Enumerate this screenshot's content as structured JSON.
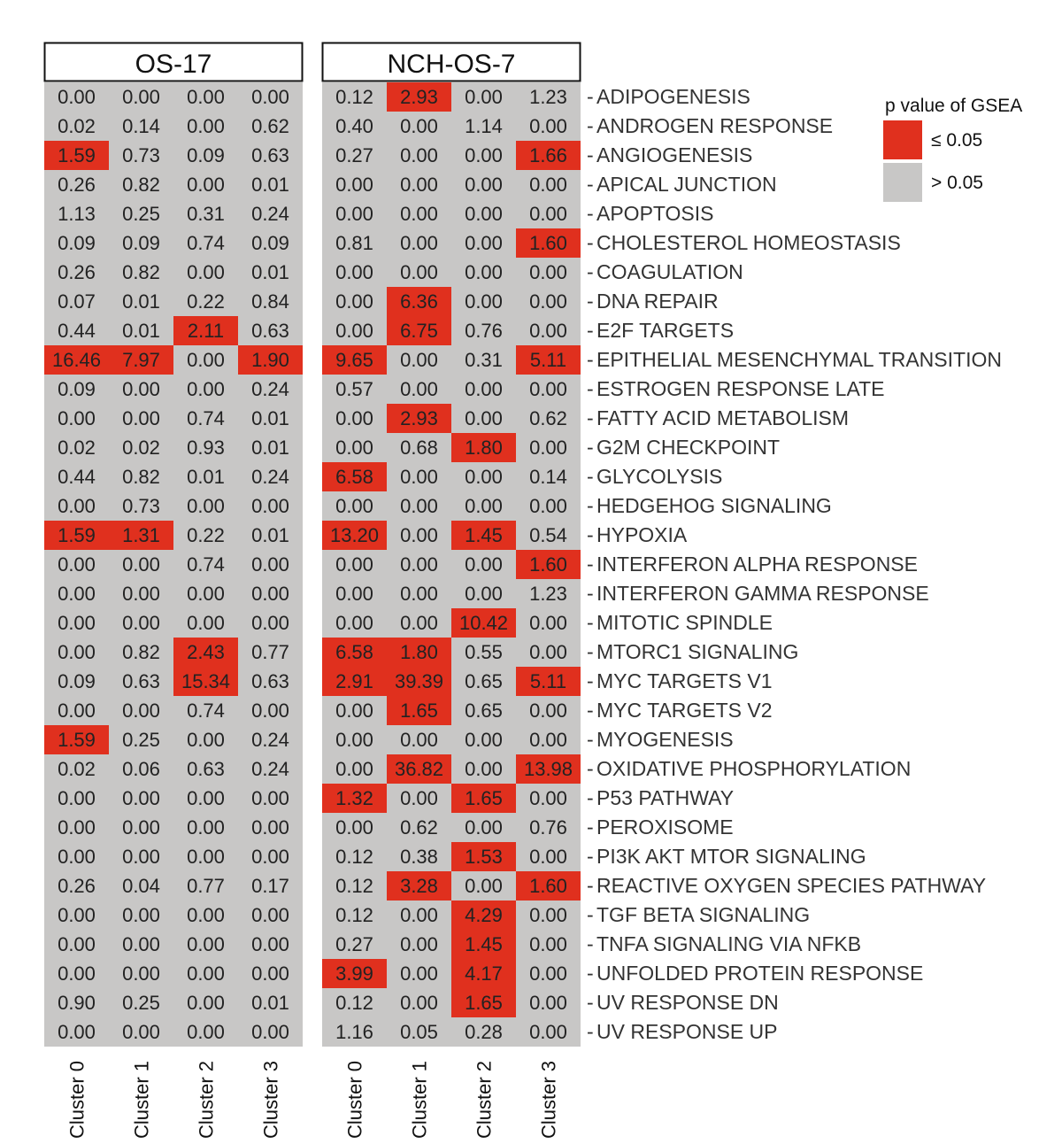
{
  "chart_data": {
    "type": "heatmap",
    "rows": [
      "ADIPOGENESIS",
      "ANDROGEN RESPONSE",
      "ANGIOGENESIS",
      "APICAL JUNCTION",
      "APOPTOSIS",
      "CHOLESTEROL HOMEOSTASIS",
      "COAGULATION",
      "DNA REPAIR",
      "E2F TARGETS",
      "EPITHELIAL MESENCHYMAL TRANSITION",
      "ESTROGEN RESPONSE LATE",
      "FATTY ACID METABOLISM",
      "G2M CHECKPOINT",
      "GLYCOLYSIS",
      "HEDGEHOG SIGNALING",
      "HYPOXIA",
      "INTERFERON ALPHA RESPONSE",
      "INTERFERON GAMMA RESPONSE",
      "MITOTIC SPINDLE",
      "MTORC1 SIGNALING",
      "MYC TARGETS V1",
      "MYC TARGETS V2",
      "MYOGENESIS",
      "OXIDATIVE PHOSPHORYLATION",
      "P53 PATHWAY",
      "PEROXISOME",
      "PI3K AKT MTOR SIGNALING",
      "REACTIVE OXYGEN SPECIES PATHWAY",
      "TGF BETA SIGNALING",
      "TNFA SIGNALING VIA NFKB",
      "UNFOLDED PROTEIN RESPONSE",
      "UV RESPONSE DN",
      "UV RESPONSE UP"
    ],
    "panels": [
      {
        "title": "OS-17",
        "columns": [
          "Cluster 0",
          "Cluster 1",
          "Cluster 2",
          "Cluster 3"
        ],
        "values": [
          [
            "0.00",
            "0.00",
            "0.00",
            "0.00"
          ],
          [
            "0.02",
            "0.14",
            "0.00",
            "0.62"
          ],
          [
            "1.59",
            "0.73",
            "0.09",
            "0.63"
          ],
          [
            "0.26",
            "0.82",
            "0.00",
            "0.01"
          ],
          [
            "1.13",
            "0.25",
            "0.31",
            "0.24"
          ],
          [
            "0.09",
            "0.09",
            "0.74",
            "0.09"
          ],
          [
            "0.26",
            "0.82",
            "0.00",
            "0.01"
          ],
          [
            "0.07",
            "0.01",
            "0.22",
            "0.84"
          ],
          [
            "0.44",
            "0.01",
            "2.11",
            "0.63"
          ],
          [
            "16.46",
            "7.97",
            "0.00",
            "1.90"
          ],
          [
            "0.09",
            "0.00",
            "0.00",
            "0.24"
          ],
          [
            "0.00",
            "0.00",
            "0.74",
            "0.01"
          ],
          [
            "0.02",
            "0.02",
            "0.93",
            "0.01"
          ],
          [
            "0.44",
            "0.82",
            "0.01",
            "0.24"
          ],
          [
            "0.00",
            "0.73",
            "0.00",
            "0.00"
          ],
          [
            "1.59",
            "1.31",
            "0.22",
            "0.01"
          ],
          [
            "0.00",
            "0.00",
            "0.74",
            "0.00"
          ],
          [
            "0.00",
            "0.00",
            "0.00",
            "0.00"
          ],
          [
            "0.00",
            "0.00",
            "0.00",
            "0.00"
          ],
          [
            "0.00",
            "0.82",
            "2.43",
            "0.77"
          ],
          [
            "0.09",
            "0.63",
            "15.34",
            "0.63"
          ],
          [
            "0.00",
            "0.00",
            "0.74",
            "0.00"
          ],
          [
            "1.59",
            "0.25",
            "0.00",
            "0.24"
          ],
          [
            "0.02",
            "0.06",
            "0.63",
            "0.24"
          ],
          [
            "0.00",
            "0.00",
            "0.00",
            "0.00"
          ],
          [
            "0.00",
            "0.00",
            "0.00",
            "0.00"
          ],
          [
            "0.00",
            "0.00",
            "0.00",
            "0.00"
          ],
          [
            "0.26",
            "0.04",
            "0.77",
            "0.17"
          ],
          [
            "0.00",
            "0.00",
            "0.00",
            "0.00"
          ],
          [
            "0.00",
            "0.00",
            "0.00",
            "0.00"
          ],
          [
            "0.00",
            "0.00",
            "0.00",
            "0.00"
          ],
          [
            "0.90",
            "0.25",
            "0.00",
            "0.01"
          ],
          [
            "0.00",
            "0.00",
            "0.00",
            "0.00"
          ]
        ],
        "significant": [
          [
            0,
            0,
            0,
            0
          ],
          [
            0,
            0,
            0,
            0
          ],
          [
            1,
            0,
            0,
            0
          ],
          [
            0,
            0,
            0,
            0
          ],
          [
            0,
            0,
            0,
            0
          ],
          [
            0,
            0,
            0,
            0
          ],
          [
            0,
            0,
            0,
            0
          ],
          [
            0,
            0,
            0,
            0
          ],
          [
            0,
            0,
            1,
            0
          ],
          [
            1,
            1,
            0,
            1
          ],
          [
            0,
            0,
            0,
            0
          ],
          [
            0,
            0,
            0,
            0
          ],
          [
            0,
            0,
            0,
            0
          ],
          [
            0,
            0,
            0,
            0
          ],
          [
            0,
            0,
            0,
            0
          ],
          [
            1,
            1,
            0,
            0
          ],
          [
            0,
            0,
            0,
            0
          ],
          [
            0,
            0,
            0,
            0
          ],
          [
            0,
            0,
            0,
            0
          ],
          [
            0,
            0,
            1,
            0
          ],
          [
            0,
            0,
            1,
            0
          ],
          [
            0,
            0,
            0,
            0
          ],
          [
            1,
            0,
            0,
            0
          ],
          [
            0,
            0,
            0,
            0
          ],
          [
            0,
            0,
            0,
            0
          ],
          [
            0,
            0,
            0,
            0
          ],
          [
            0,
            0,
            0,
            0
          ],
          [
            0,
            0,
            0,
            0
          ],
          [
            0,
            0,
            0,
            0
          ],
          [
            0,
            0,
            0,
            0
          ],
          [
            0,
            0,
            0,
            0
          ],
          [
            0,
            0,
            0,
            0
          ],
          [
            0,
            0,
            0,
            0
          ]
        ]
      },
      {
        "title": "NCH-OS-7",
        "columns": [
          "Cluster 0",
          "Cluster 1",
          "Cluster 2",
          "Cluster 3"
        ],
        "values": [
          [
            "0.12",
            "2.93",
            "0.00",
            "1.23"
          ],
          [
            "0.40",
            "0.00",
            "1.14",
            "0.00"
          ],
          [
            "0.27",
            "0.00",
            "0.00",
            "1.66"
          ],
          [
            "0.00",
            "0.00",
            "0.00",
            "0.00"
          ],
          [
            "0.00",
            "0.00",
            "0.00",
            "0.00"
          ],
          [
            "0.81",
            "0.00",
            "0.00",
            "1.60"
          ],
          [
            "0.00",
            "0.00",
            "0.00",
            "0.00"
          ],
          [
            "0.00",
            "6.36",
            "0.00",
            "0.00"
          ],
          [
            "0.00",
            "6.75",
            "0.76",
            "0.00"
          ],
          [
            "9.65",
            "0.00",
            "0.31",
            "5.11"
          ],
          [
            "0.57",
            "0.00",
            "0.00",
            "0.00"
          ],
          [
            "0.00",
            "2.93",
            "0.00",
            "0.62"
          ],
          [
            "0.00",
            "0.68",
            "1.80",
            "0.00"
          ],
          [
            "6.58",
            "0.00",
            "0.00",
            "0.14"
          ],
          [
            "0.00",
            "0.00",
            "0.00",
            "0.00"
          ],
          [
            "13.20",
            "0.00",
            "1.45",
            "0.54"
          ],
          [
            "0.00",
            "0.00",
            "0.00",
            "1.60"
          ],
          [
            "0.00",
            "0.00",
            "0.00",
            "1.23"
          ],
          [
            "0.00",
            "0.00",
            "10.42",
            "0.00"
          ],
          [
            "6.58",
            "1.80",
            "0.55",
            "0.00"
          ],
          [
            "2.91",
            "39.39",
            "0.65",
            "5.11"
          ],
          [
            "0.00",
            "1.65",
            "0.65",
            "0.00"
          ],
          [
            "0.00",
            "0.00",
            "0.00",
            "0.00"
          ],
          [
            "0.00",
            "36.82",
            "0.00",
            "13.98"
          ],
          [
            "1.32",
            "0.00",
            "1.65",
            "0.00"
          ],
          [
            "0.00",
            "0.62",
            "0.00",
            "0.76"
          ],
          [
            "0.12",
            "0.38",
            "1.53",
            "0.00"
          ],
          [
            "0.12",
            "3.28",
            "0.00",
            "1.60"
          ],
          [
            "0.12",
            "0.00",
            "4.29",
            "0.00"
          ],
          [
            "0.27",
            "0.00",
            "1.45",
            "0.00"
          ],
          [
            "3.99",
            "0.00",
            "4.17",
            "0.00"
          ],
          [
            "0.12",
            "0.00",
            "1.65",
            "0.00"
          ],
          [
            "1.16",
            "0.05",
            "0.28",
            "0.00"
          ]
        ],
        "significant": [
          [
            0,
            1,
            0,
            0
          ],
          [
            0,
            0,
            0,
            0
          ],
          [
            0,
            0,
            0,
            1
          ],
          [
            0,
            0,
            0,
            0
          ],
          [
            0,
            0,
            0,
            0
          ],
          [
            0,
            0,
            0,
            1
          ],
          [
            0,
            0,
            0,
            0
          ],
          [
            0,
            1,
            0,
            0
          ],
          [
            0,
            1,
            0,
            0
          ],
          [
            1,
            0,
            0,
            1
          ],
          [
            0,
            0,
            0,
            0
          ],
          [
            0,
            1,
            0,
            0
          ],
          [
            0,
            0,
            1,
            0
          ],
          [
            1,
            0,
            0,
            0
          ],
          [
            0,
            0,
            0,
            0
          ],
          [
            1,
            0,
            1,
            0
          ],
          [
            0,
            0,
            0,
            1
          ],
          [
            0,
            0,
            0,
            0
          ],
          [
            0,
            0,
            1,
            0
          ],
          [
            1,
            1,
            0,
            0
          ],
          [
            1,
            1,
            0,
            1
          ],
          [
            0,
            1,
            0,
            0
          ],
          [
            0,
            0,
            0,
            0
          ],
          [
            0,
            1,
            0,
            1
          ],
          [
            1,
            0,
            1,
            0
          ],
          [
            0,
            0,
            0,
            0
          ],
          [
            0,
            0,
            1,
            0
          ],
          [
            0,
            1,
            0,
            1
          ],
          [
            0,
            0,
            1,
            0
          ],
          [
            0,
            0,
            1,
            0
          ],
          [
            1,
            0,
            1,
            0
          ],
          [
            0,
            0,
            1,
            0
          ],
          [
            0,
            0,
            0,
            0
          ]
        ]
      }
    ],
    "legend": {
      "title": "p value of GSEA",
      "placement": "top-right",
      "items": [
        {
          "label": "≤ 0.05",
          "color": "#E0301E"
        },
        {
          "label": "> 0.05",
          "color": "#C8C7C6"
        }
      ]
    },
    "colors": {
      "significant": "#E0301E",
      "not_significant": "#C8C7C6",
      "text": "#222222"
    }
  }
}
